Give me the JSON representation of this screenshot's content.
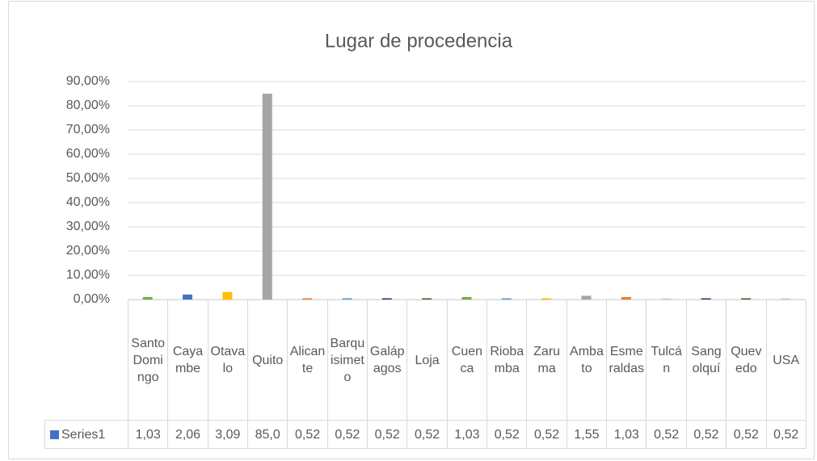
{
  "chart_data": {
    "type": "bar",
    "title": "Lugar de procedencia",
    "categories": [
      "Santo Domingo",
      "Cayambe",
      "Otavalo",
      "Quito",
      "Alicante",
      "Barquisimeto",
      "Galápagos",
      "Loja",
      "Cuenca",
      "Riobamba",
      "Zaruma",
      "Ambato",
      "Esmeraldas",
      "Tulcán",
      "Sangolquí",
      "Quevedo",
      "USA"
    ],
    "series": [
      {
        "name": "Series1",
        "color": "#4472c4",
        "values": [
          1.03,
          2.06,
          3.09,
          85.0,
          0.52,
          0.52,
          0.52,
          0.52,
          1.03,
          0.52,
          0.52,
          1.55,
          1.03,
          0.52,
          0.52,
          0.52,
          0.52
        ],
        "value_labels": [
          "1,03",
          "2,06",
          "3,09",
          "85,0",
          "0,52",
          "0,52",
          "0,52",
          "0,52",
          "1,03",
          "0,52",
          "0,52",
          "1,55",
          "1,03",
          "0,52",
          "0,52",
          "0,52",
          "0,52"
        ],
        "colors": [
          "#70ad47",
          "#4472c4",
          "#ffc000",
          "#a5a5a5",
          "#ed7d31",
          "#5b9bd5",
          "#264478",
          "#43682b",
          "#70ad47",
          "#5b9bd5",
          "#ffc000",
          "#a5a5a5",
          "#ed7d31",
          "#bdd7ee",
          "#264478",
          "#43682b",
          "#c9c9e0"
        ]
      }
    ],
    "ylim": [
      0,
      90
    ],
    "yticks": [
      {
        "value": 0,
        "label": "0,00%"
      },
      {
        "value": 10,
        "label": "10,00%"
      },
      {
        "value": 20,
        "label": "20,00%"
      },
      {
        "value": 30,
        "label": "30,00%"
      },
      {
        "value": 40,
        "label": "40,00%"
      },
      {
        "value": 50,
        "label": "50,00%"
      },
      {
        "value": 60,
        "label": "60,00%"
      },
      {
        "value": 70,
        "label": "70,00%"
      },
      {
        "value": 80,
        "label": "80,00%"
      },
      {
        "value": 90,
        "label": "90,00%"
      }
    ],
    "grid": true
  }
}
